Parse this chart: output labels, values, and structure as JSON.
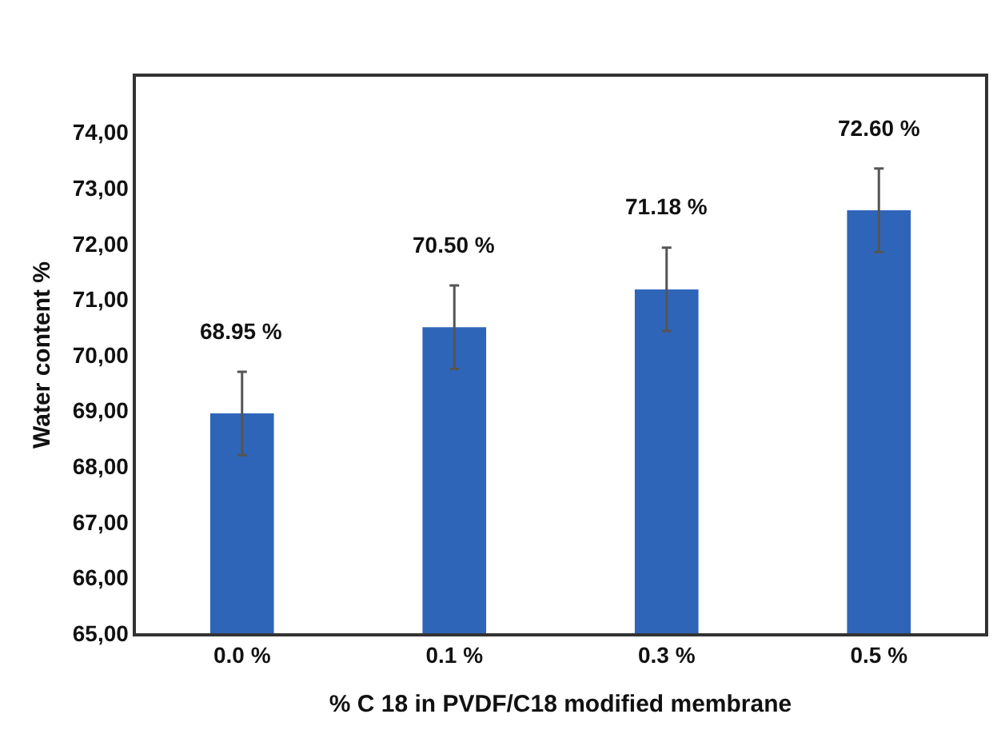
{
  "chart_data": {
    "type": "bar",
    "xlabel": "% C 18 in PVDF/C18 modified membrane",
    "ylabel": "Water content %",
    "categories": [
      "0.0 %",
      "0.1 %",
      "0.3 %",
      "0.5 %"
    ],
    "values": [
      68.95,
      70.5,
      71.18,
      72.6
    ],
    "value_labels": [
      "68.95 %",
      "70.50 %",
      "71.18 %",
      "72.60 %"
    ],
    "errors": [
      0.75,
      0.75,
      0.75,
      0.75
    ],
    "color": "#2f65b9",
    "ylim": [
      65,
      75
    ],
    "yticks": [
      {
        "value": 65,
        "label": "65,00"
      },
      {
        "value": 66,
        "label": "66,00"
      },
      {
        "value": 67,
        "label": "67,00"
      },
      {
        "value": 68,
        "label": "68,00"
      },
      {
        "value": 69,
        "label": "69,00"
      },
      {
        "value": 70,
        "label": "70,00"
      },
      {
        "value": 71,
        "label": "71,00"
      },
      {
        "value": 72,
        "label": "72,00"
      },
      {
        "value": 73,
        "label": "73,00"
      },
      {
        "value": 74,
        "label": "74,00"
      }
    ],
    "grid": false
  }
}
